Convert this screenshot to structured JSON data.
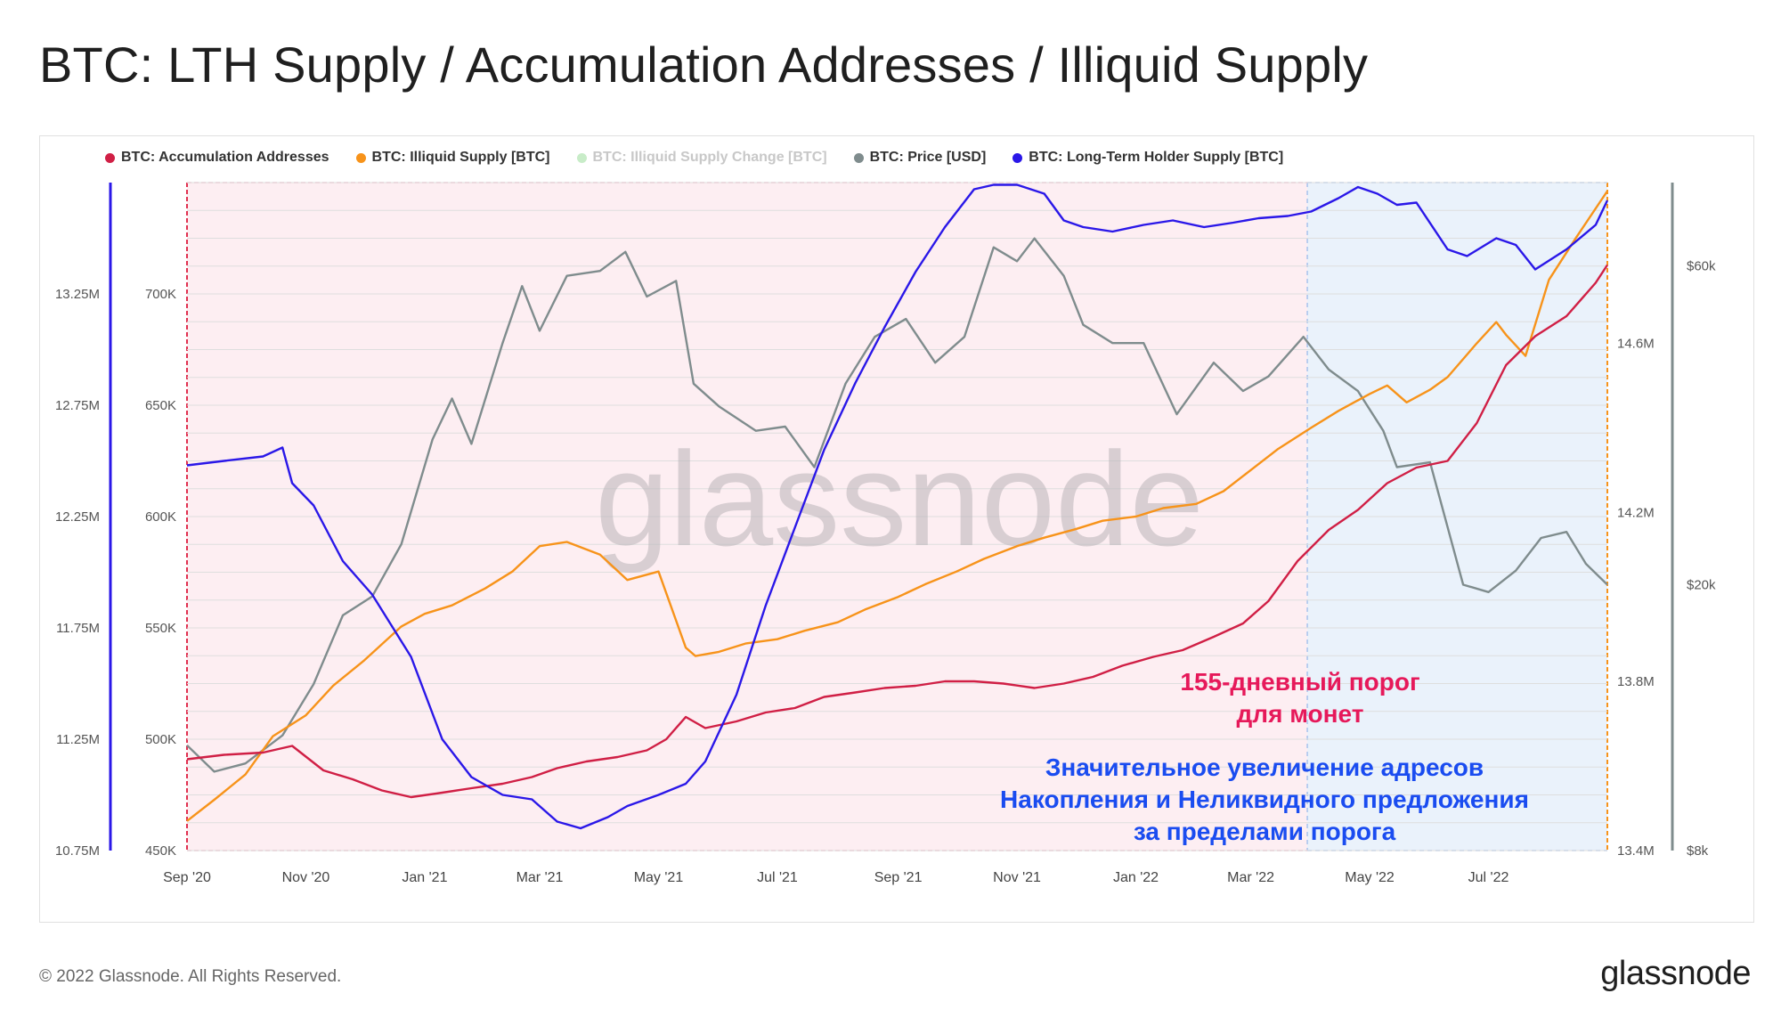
{
  "title": "BTC: LTH Supply / Accumulation Addresses / Illiquid Supply",
  "legend": [
    {
      "label": "BTC: Accumulation Addresses",
      "color": "#d01f45",
      "muted": false
    },
    {
      "label": "BTC: Illiquid Supply [BTC]",
      "color": "#f7931a",
      "muted": false
    },
    {
      "label": "BTC: Illiquid Supply Change [BTC]",
      "color": "#2ecc40",
      "muted": true
    },
    {
      "label": "BTC: Price [USD]",
      "color": "#7f8c8d",
      "muted": false
    },
    {
      "label": "BTC: Long-Term Holder Supply [BTC]",
      "color": "#2a17e8",
      "muted": false
    }
  ],
  "watermark": "glassnode",
  "annotations": {
    "threshold": [
      "155-дневный  порог",
      "для монет"
    ],
    "increase": [
      "Значительное увеличение адресов",
      "Накопления и Неликвидного предложения",
      "за пределами порога"
    ]
  },
  "footer": {
    "copyright": "© 2022 Glassnode. All Rights Reserved.",
    "logo": "glassnode"
  },
  "chart_data": {
    "type": "line",
    "x_ticks": [
      "Sep '20",
      "Nov '20",
      "Jan '21",
      "Mar '21",
      "May '21",
      "Jul '21",
      "Sep '21",
      "Nov '21",
      "Jan '22",
      "Mar '22",
      "May '22",
      "Jul '22"
    ],
    "x_range": [
      "2020-09-01",
      "2022-08-31"
    ],
    "axes": {
      "lth_supply": {
        "ticks": [
          "10.75M",
          "11.25M",
          "11.75M",
          "12.25M",
          "12.75M",
          "13.25M"
        ],
        "range": [
          10.75,
          13.75
        ],
        "unit": "M BTC",
        "color": "#2a17e8"
      },
      "accumulation_addresses": {
        "ticks": [
          "450K",
          "500K",
          "550K",
          "600K",
          "650K",
          "700K"
        ],
        "range": [
          450,
          750
        ],
        "unit": "K"
      },
      "illiquid_supply": {
        "ticks": [
          "13.4M",
          "13.8M",
          "14.2M",
          "14.6M"
        ],
        "range": [
          13.4,
          14.98
        ],
        "unit": "M BTC",
        "color": "#f7931a"
      },
      "price": {
        "ticks": [
          "$8k",
          "$20k",
          "$60k"
        ],
        "range": [
          8,
          80
        ],
        "scale": "log",
        "unit": "k USD"
      }
    },
    "regions": [
      {
        "name": "threshold-zone",
        "from": "2020-09-01",
        "to": "2022-03-30",
        "color": "#fdeef2"
      },
      {
        "name": "post-threshold-zone",
        "from": "2022-03-30",
        "to": "2022-08-31",
        "color": "#eaf2fb"
      }
    ],
    "series": [
      {
        "name": "BTC: Long-Term Holder Supply [BTC]",
        "axis": "lth_supply",
        "color": "#2a17e8",
        "x": [
          "2020-09-01",
          "2020-09-20",
          "2020-10-10",
          "2020-10-20",
          "2020-10-25",
          "2020-11-05",
          "2020-11-20",
          "2020-12-05",
          "2020-12-25",
          "2021-01-10",
          "2021-01-25",
          "2021-02-10",
          "2021-02-25",
          "2021-03-10",
          "2021-03-22",
          "2021-04-05",
          "2021-04-15",
          "2021-05-01",
          "2021-05-15",
          "2021-05-25",
          "2021-06-10",
          "2021-06-25",
          "2021-07-10",
          "2021-07-25",
          "2021-08-10",
          "2021-08-25",
          "2021-09-10",
          "2021-09-25",
          "2021-10-10",
          "2021-10-20",
          "2021-11-01",
          "2021-11-15",
          "2021-11-25",
          "2021-12-05",
          "2021-12-20",
          "2022-01-05",
          "2022-01-20",
          "2022-02-05",
          "2022-02-20",
          "2022-03-05",
          "2022-03-20",
          "2022-04-01",
          "2022-04-15",
          "2022-04-25",
          "2022-05-05",
          "2022-05-15",
          "2022-05-25",
          "2022-06-10",
          "2022-06-20",
          "2022-07-05",
          "2022-07-15",
          "2022-07-25",
          "2022-08-10",
          "2022-08-25",
          "2022-08-31"
        ],
        "values": [
          12.48,
          12.5,
          12.52,
          12.56,
          12.4,
          12.3,
          12.05,
          11.9,
          11.62,
          11.25,
          11.08,
          11.0,
          10.98,
          10.88,
          10.85,
          10.9,
          10.95,
          11.0,
          11.05,
          11.15,
          11.45,
          11.85,
          12.2,
          12.55,
          12.85,
          13.1,
          13.35,
          13.55,
          13.72,
          13.74,
          13.74,
          13.7,
          13.58,
          13.55,
          13.53,
          13.56,
          13.58,
          13.55,
          13.57,
          13.59,
          13.6,
          13.62,
          13.68,
          13.73,
          13.7,
          13.65,
          13.66,
          13.45,
          13.42,
          13.5,
          13.47,
          13.36,
          13.45,
          13.56,
          13.67
        ]
      },
      {
        "name": "BTC: Accumulation Addresses",
        "axis": "accumulation_addresses",
        "color": "#d01f45",
        "x": [
          "2020-09-01",
          "2020-09-20",
          "2020-10-10",
          "2020-10-25",
          "2020-11-10",
          "2020-11-25",
          "2020-12-10",
          "2020-12-25",
          "2021-01-10",
          "2021-01-25",
          "2021-02-10",
          "2021-02-25",
          "2021-03-10",
          "2021-03-25",
          "2021-04-10",
          "2021-04-25",
          "2021-05-05",
          "2021-05-15",
          "2021-05-25",
          "2021-06-10",
          "2021-06-25",
          "2021-07-10",
          "2021-07-25",
          "2021-08-10",
          "2021-08-25",
          "2021-09-10",
          "2021-09-25",
          "2021-10-10",
          "2021-10-25",
          "2021-11-10",
          "2021-11-25",
          "2021-12-10",
          "2021-12-25",
          "2022-01-10",
          "2022-01-25",
          "2022-02-10",
          "2022-02-25",
          "2022-03-10",
          "2022-03-25",
          "2022-04-10",
          "2022-04-25",
          "2022-05-10",
          "2022-05-25",
          "2022-06-10",
          "2022-06-25",
          "2022-07-10",
          "2022-07-25",
          "2022-08-10",
          "2022-08-25",
          "2022-08-31"
        ],
        "values": [
          491,
          493,
          494,
          497,
          486,
          482,
          477,
          474,
          476,
          478,
          480,
          483,
          487,
          490,
          492,
          495,
          500,
          510,
          505,
          508,
          512,
          514,
          519,
          521,
          523,
          524,
          526,
          526,
          525,
          523,
          525,
          528,
          533,
          537,
          540,
          546,
          552,
          562,
          580,
          594,
          603,
          615,
          622,
          625,
          642,
          668,
          681,
          690,
          705,
          713
        ]
      },
      {
        "name": "BTC: Illiquid Supply [BTC]",
        "axis": "illiquid_supply",
        "color": "#f7931a",
        "x": [
          "2020-09-01",
          "2020-09-15",
          "2020-10-01",
          "2020-10-15",
          "2020-11-01",
          "2020-11-15",
          "2020-12-01",
          "2020-12-20",
          "2021-01-01",
          "2021-01-15",
          "2021-02-01",
          "2021-02-15",
          "2021-03-01",
          "2021-03-15",
          "2021-04-01",
          "2021-04-15",
          "2021-05-01",
          "2021-05-15",
          "2021-05-20",
          "2021-06-01",
          "2021-06-15",
          "2021-07-01",
          "2021-07-15",
          "2021-08-01",
          "2021-08-15",
          "2021-09-01",
          "2021-09-15",
          "2021-10-01",
          "2021-10-15",
          "2021-11-01",
          "2021-11-15",
          "2021-12-01",
          "2021-12-15",
          "2022-01-01",
          "2022-01-15",
          "2022-02-01",
          "2022-02-15",
          "2022-03-01",
          "2022-03-15",
          "2022-04-01",
          "2022-04-15",
          "2022-05-01",
          "2022-05-10",
          "2022-05-20",
          "2022-06-01",
          "2022-06-10",
          "2022-06-25",
          "2022-07-05",
          "2022-07-10",
          "2022-07-20",
          "2022-08-01",
          "2022-08-15",
          "2022-08-31"
        ],
        "values": [
          13.47,
          13.52,
          13.58,
          13.67,
          13.72,
          13.79,
          13.85,
          13.93,
          13.96,
          13.98,
          14.02,
          14.06,
          14.12,
          14.13,
          14.1,
          14.04,
          14.06,
          13.88,
          13.86,
          13.87,
          13.89,
          13.9,
          13.92,
          13.94,
          13.97,
          14.0,
          14.03,
          14.06,
          14.09,
          14.12,
          14.14,
          14.16,
          14.18,
          14.19,
          14.21,
          14.22,
          14.25,
          14.3,
          14.35,
          14.4,
          14.44,
          14.48,
          14.5,
          14.46,
          14.49,
          14.52,
          14.6,
          14.65,
          14.62,
          14.57,
          14.75,
          14.85,
          14.96
        ]
      },
      {
        "name": "BTC: Price [USD]",
        "axis": "price",
        "color": "#7f8c8d",
        "x": [
          "2020-09-01",
          "2020-09-15",
          "2020-10-01",
          "2020-10-20",
          "2020-11-05",
          "2020-11-20",
          "2020-12-05",
          "2020-12-20",
          "2021-01-05",
          "2021-01-15",
          "2021-01-25",
          "2021-02-10",
          "2021-02-20",
          "2021-03-01",
          "2021-03-15",
          "2021-04-01",
          "2021-04-14",
          "2021-04-25",
          "2021-05-10",
          "2021-05-19",
          "2021-06-01",
          "2021-06-20",
          "2021-07-05",
          "2021-07-20",
          "2021-08-05",
          "2021-08-20",
          "2021-09-05",
          "2021-09-20",
          "2021-10-05",
          "2021-10-20",
          "2021-11-01",
          "2021-11-10",
          "2021-11-25",
          "2021-12-05",
          "2021-12-20",
          "2022-01-05",
          "2022-01-22",
          "2022-02-10",
          "2022-02-25",
          "2022-03-10",
          "2022-03-28",
          "2022-04-10",
          "2022-04-25",
          "2022-05-08",
          "2022-05-15",
          "2022-06-01",
          "2022-06-18",
          "2022-07-01",
          "2022-07-15",
          "2022-07-28",
          "2022-08-10",
          "2022-08-20",
          "2022-08-31"
        ],
        "values": [
          11.5,
          10.5,
          10.8,
          11.9,
          14.2,
          18.0,
          19.2,
          23.0,
          33.0,
          38.0,
          32.5,
          46.0,
          56.0,
          48.0,
          58.0,
          59.0,
          63.0,
          54.0,
          57.0,
          40.0,
          37.0,
          34.0,
          34.5,
          30.0,
          40.0,
          47.0,
          50.0,
          43.0,
          47.0,
          64.0,
          61.0,
          66.0,
          58.0,
          49.0,
          46.0,
          46.0,
          36.0,
          43.0,
          39.0,
          41.0,
          47.0,
          42.0,
          39.0,
          34.0,
          30.0,
          30.5,
          20.0,
          19.5,
          21.0,
          23.5,
          24.0,
          21.5,
          20.0
        ]
      }
    ]
  }
}
